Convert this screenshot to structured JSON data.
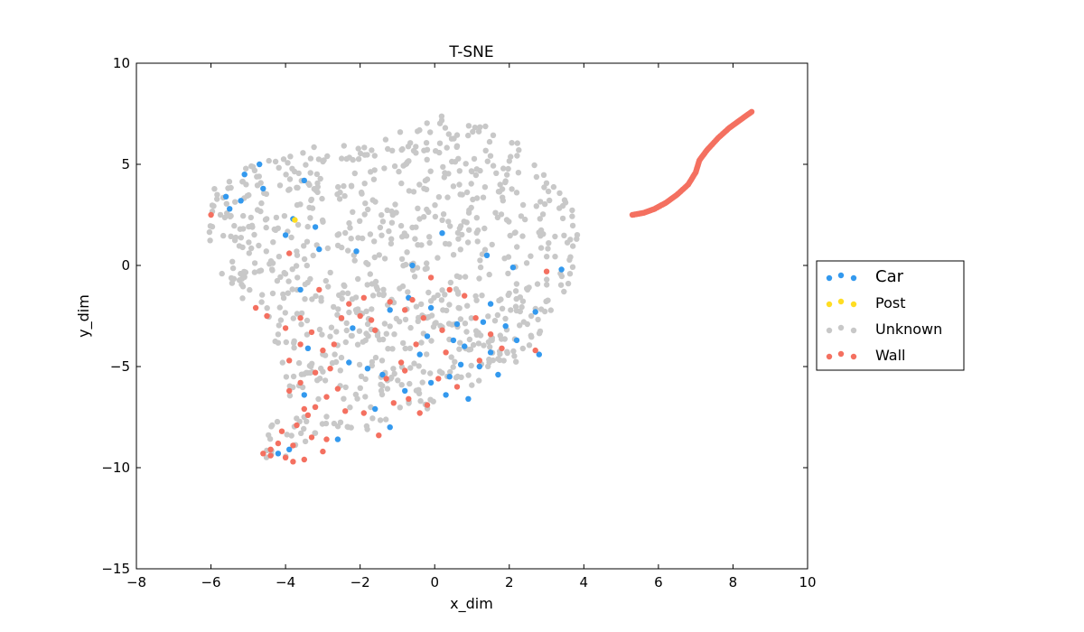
{
  "chart_data": {
    "type": "scatter",
    "title": "T-SNE",
    "xlabel": "x_dim",
    "ylabel": "y_dim",
    "xlim": [
      -8,
      10
    ],
    "ylim": [
      -15,
      10
    ],
    "x_ticks": [
      -8,
      -6,
      -4,
      -2,
      0,
      2,
      4,
      6,
      8,
      10
    ],
    "y_ticks": [
      10,
      5,
      0,
      -5,
      -10,
      -15
    ],
    "x_tick_labels": [
      "−8",
      "−6",
      "−4",
      "−2",
      "0",
      "2",
      "4",
      "6",
      "8",
      "10"
    ],
    "y_tick_labels": [
      "10",
      "5",
      "0",
      "−5",
      "−10",
      "−15"
    ],
    "grid": false,
    "legend_position": "outside-right",
    "series": [
      {
        "name": "Car",
        "color": "#3399ee",
        "points": [
          [
            -5.6,
            3.4
          ],
          [
            -5.1,
            4.5
          ],
          [
            -4.7,
            5.0
          ],
          [
            -3.5,
            4.2
          ],
          [
            -5.5,
            2.8
          ],
          [
            -5.2,
            3.2
          ],
          [
            -4.6,
            3.8
          ],
          [
            -4.0,
            1.5
          ],
          [
            -3.8,
            2.3
          ],
          [
            -3.2,
            1.9
          ],
          [
            -3.1,
            0.8
          ],
          [
            -2.1,
            0.7
          ],
          [
            -0.6,
            0.0
          ],
          [
            0.2,
            1.6
          ],
          [
            1.4,
            0.5
          ],
          [
            2.1,
            -0.1
          ],
          [
            3.4,
            -0.2
          ],
          [
            -2.2,
            -3.1
          ],
          [
            -1.2,
            -2.2
          ],
          [
            -0.1,
            -2.1
          ],
          [
            0.6,
            -2.9
          ],
          [
            1.3,
            -2.8
          ],
          [
            1.9,
            -3.0
          ],
          [
            2.7,
            -2.3
          ],
          [
            -0.2,
            -3.5
          ],
          [
            0.8,
            -4.0
          ],
          [
            1.5,
            -4.3
          ],
          [
            2.2,
            -3.7
          ],
          [
            2.8,
            -4.4
          ],
          [
            -0.4,
            -4.4
          ],
          [
            0.7,
            -4.9
          ],
          [
            1.2,
            -5.0
          ],
          [
            1.7,
            -5.4
          ],
          [
            -1.4,
            -5.4
          ],
          [
            -0.8,
            -6.2
          ],
          [
            0.3,
            -6.4
          ],
          [
            0.9,
            -6.6
          ],
          [
            -2.3,
            -4.8
          ],
          [
            -1.8,
            -5.1
          ],
          [
            -1.2,
            -8.0
          ],
          [
            -2.6,
            -8.6
          ],
          [
            -3.5,
            -6.4
          ],
          [
            -4.2,
            -9.3
          ],
          [
            -3.9,
            -9.1
          ],
          [
            -3.4,
            -4.1
          ],
          [
            -0.7,
            -1.6
          ],
          [
            1.5,
            -1.9
          ],
          [
            0.4,
            -5.5
          ],
          [
            -0.1,
            -5.8
          ],
          [
            -1.6,
            -7.1
          ],
          [
            0.5,
            -3.7
          ],
          [
            -3.6,
            -1.2
          ]
        ]
      },
      {
        "name": "Post",
        "color": "#ffdd22",
        "points": [
          [
            -3.75,
            2.25
          ]
        ]
      },
      {
        "name": "Unknown",
        "color": "#c8c8c8",
        "points": "generated-cloud"
      },
      {
        "name": "Wall",
        "color": "#f47060",
        "points": [
          [
            -6.0,
            2.5
          ],
          [
            -4.8,
            -2.1
          ],
          [
            -4.5,
            -2.5
          ],
          [
            -4.0,
            -3.1
          ],
          [
            -3.6,
            -2.6
          ],
          [
            -3.3,
            -3.3
          ],
          [
            -3.0,
            -4.2
          ],
          [
            -2.7,
            -3.9
          ],
          [
            -2.5,
            -2.6
          ],
          [
            -2.3,
            -1.9
          ],
          [
            -2.0,
            -2.5
          ],
          [
            -1.6,
            -3.2
          ],
          [
            -1.2,
            -1.8
          ],
          [
            -0.8,
            -2.2
          ],
          [
            -0.3,
            -2.6
          ],
          [
            -0.1,
            -0.6
          ],
          [
            0.4,
            -1.2
          ],
          [
            0.8,
            -1.5
          ],
          [
            1.1,
            -2.6
          ],
          [
            1.5,
            -3.4
          ],
          [
            1.8,
            -4.1
          ],
          [
            0.2,
            -3.2
          ],
          [
            -0.5,
            -3.9
          ],
          [
            -3.9,
            -6.2
          ],
          [
            -3.6,
            -5.8
          ],
          [
            -3.2,
            -5.3
          ],
          [
            -2.9,
            -6.5
          ],
          [
            -3.2,
            -7.0
          ],
          [
            -3.4,
            -7.4
          ],
          [
            -3.7,
            -7.9
          ],
          [
            -4.1,
            -8.2
          ],
          [
            -3.8,
            -8.9
          ],
          [
            -4.4,
            -9.1
          ],
          [
            -4.6,
            -9.3
          ],
          [
            -3.5,
            -9.6
          ],
          [
            -3.0,
            -9.2
          ],
          [
            -4.0,
            -9.5
          ],
          [
            -3.8,
            -9.7
          ],
          [
            -2.9,
            -8.6
          ],
          [
            -1.9,
            -7.3
          ],
          [
            -1.5,
            -8.4
          ],
          [
            -1.1,
            -6.8
          ],
          [
            -0.7,
            -6.6
          ],
          [
            -0.4,
            -7.3
          ],
          [
            -1.3,
            -5.6
          ],
          [
            -0.8,
            -5.2
          ],
          [
            0.1,
            -5.6
          ],
          [
            0.6,
            -6.0
          ],
          [
            -3.1,
            -1.2
          ],
          [
            -1.9,
            -1.6
          ],
          [
            -3.9,
            -4.7
          ],
          [
            -3.6,
            -3.9
          ],
          [
            -2.8,
            -5.1
          ],
          [
            -0.9,
            -4.8
          ],
          [
            3.0,
            -0.3
          ],
          [
            2.7,
            -4.2
          ],
          [
            0.3,
            -4.3
          ],
          [
            -3.9,
            0.6
          ],
          [
            -0.6,
            -1.7
          ],
          [
            -2.4,
            -7.2
          ],
          [
            -3.3,
            -8.5
          ],
          [
            -1.7,
            -2.7
          ],
          [
            -4.4,
            -9.4
          ],
          [
            -4.2,
            -8.8
          ],
          [
            -3.5,
            -7.1
          ],
          [
            -2.6,
            -6.1
          ],
          [
            -0.2,
            -6.9
          ],
          [
            1.2,
            -4.7
          ]
        ],
        "curve": [
          [
            5.3,
            2.5
          ],
          [
            5.6,
            2.6
          ],
          [
            5.9,
            2.8
          ],
          [
            6.2,
            3.1
          ],
          [
            6.5,
            3.5
          ],
          [
            6.8,
            4.0
          ],
          [
            7.0,
            4.6
          ],
          [
            7.1,
            5.2
          ],
          [
            7.3,
            5.7
          ],
          [
            7.6,
            6.3
          ],
          [
            7.9,
            6.8
          ],
          [
            8.2,
            7.2
          ],
          [
            8.5,
            7.6
          ]
        ]
      }
    ]
  }
}
